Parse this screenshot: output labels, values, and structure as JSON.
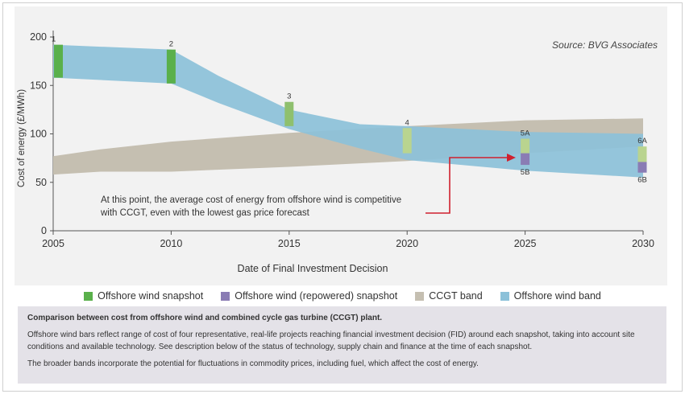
{
  "source_note": "Source: BVG Associates",
  "annotation": {
    "line1": "At this point, the average cost of energy from offshore wind is competitive",
    "line2": "with CCGT, even with the lowest gas price forecast"
  },
  "legend": [
    {
      "label": "Offshore wind snapshot",
      "color": "#5ab04b"
    },
    {
      "label": "Offshore wind (repowered) snapshot",
      "color": "#8a7cb4"
    },
    {
      "label": "CCGT band",
      "color": "#c5bfb1"
    },
    {
      "label": "Offshore wind band",
      "color": "#8cc1d9"
    }
  ],
  "caption": {
    "title": "Comparison between cost from offshore wind and combined cycle gas turbine (CCGT) plant.",
    "para1": "Offshore wind bars reflect range of cost of four representative, real-life projects reaching financial investment decision (FID) around each snapshot, taking into account site conditions and available technology. See description below of the status of technology, supply chain and finance at the time of each snapshot.",
    "para2": "The broader bands incorporate the potential for fluctuations in commodity prices, including fuel, which affect the cost of energy."
  },
  "chart_data": {
    "type": "area",
    "xlabel": "Date of Final Investment Decision",
    "ylabel": "Cost of energy (£/MWh)",
    "xlim": [
      2005,
      2030
    ],
    "ylim": [
      0,
      200
    ],
    "x_ticks": [
      2005,
      2010,
      2015,
      2020,
      2025,
      2030
    ],
    "y_ticks": [
      0,
      50,
      100,
      150,
      200
    ],
    "bands": [
      {
        "name": "CCGT band",
        "color": "#c5bfb1",
        "x": [
          2005,
          2007,
          2010,
          2015,
          2020,
          2025,
          2030
        ],
        "upper": [
          77,
          84,
          92,
          101,
          108,
          114,
          116
        ],
        "lower": [
          58,
          61,
          61,
          66,
          72,
          80,
          87
        ]
      },
      {
        "name": "Offshore wind band",
        "color": "#8cc1d9",
        "x": [
          2005,
          2010,
          2012,
          2015,
          2018,
          2020,
          2025,
          2030
        ],
        "upper": [
          192,
          187,
          160,
          125,
          110,
          108,
          102,
          100
        ],
        "lower": [
          158,
          152,
          132,
          105,
          85,
          73,
          62,
          55
        ]
      }
    ],
    "snapshots": [
      {
        "label": "1",
        "x": 2005,
        "low": 158,
        "high": 192,
        "type": "snapshot",
        "shade": "dark"
      },
      {
        "label": "2",
        "x": 2010,
        "low": 152,
        "high": 187,
        "type": "snapshot",
        "shade": "dark"
      },
      {
        "label": "3",
        "x": 2015,
        "low": 108,
        "high": 133,
        "type": "snapshot",
        "shade": "light"
      },
      {
        "label": "4",
        "x": 2020,
        "low": 80,
        "high": 106,
        "type": "snapshot",
        "shade": "pale"
      },
      {
        "label": "5A",
        "x": 2025,
        "low": 80,
        "high": 95,
        "type": "snapshot",
        "shade": "pale"
      },
      {
        "label": "5B",
        "x": 2025,
        "low": 68,
        "high": 80,
        "type": "repowered"
      },
      {
        "label": "6A",
        "x": 2030,
        "low": 71,
        "high": 87,
        "type": "snapshot",
        "shade": "pale"
      },
      {
        "label": "6B",
        "x": 2030,
        "low": 60,
        "high": 71,
        "type": "repowered"
      }
    ]
  }
}
